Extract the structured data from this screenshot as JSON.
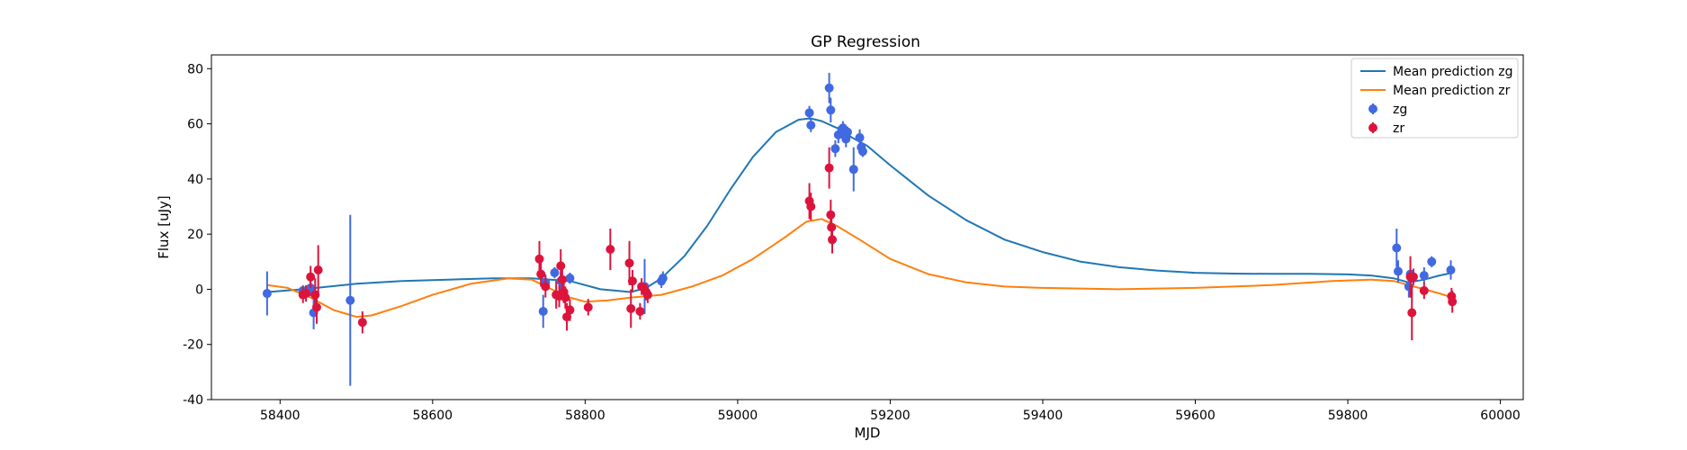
{
  "chart_data": {
    "type": "scatter",
    "title": "GP Regression",
    "xlabel": "MJD",
    "ylabel": "Flux [uJy]",
    "xlim": [
      58310,
      60030
    ],
    "ylim": [
      -40,
      85
    ],
    "xticks": [
      58400,
      58600,
      58800,
      59000,
      59200,
      59400,
      59600,
      59800,
      60000
    ],
    "yticks": [
      -40,
      -20,
      0,
      20,
      40,
      60,
      80
    ],
    "grid": false,
    "legend_position": "top-right",
    "lines": [
      {
        "name": "Mean prediction zg",
        "color": "#1f77b4",
        "x": [
          58383,
          58430,
          58500,
          58560,
          58620,
          58680,
          58730,
          58780,
          58820,
          58860,
          58880,
          58900,
          58930,
          58960,
          58990,
          59020,
          59050,
          59080,
          59095,
          59110,
          59130,
          59150,
          59170,
          59200,
          59250,
          59300,
          59350,
          59400,
          59450,
          59500,
          59550,
          59600,
          59650,
          59700,
          59750,
          59800,
          59830,
          59860,
          59880,
          59900,
          59920,
          59937
        ],
        "y": [
          -1,
          0,
          2,
          3,
          3.5,
          4,
          4,
          3,
          0,
          -1,
          0.5,
          4,
          12,
          23,
          36,
          48,
          57,
          61.5,
          62,
          61,
          58.5,
          55,
          52,
          45,
          34,
          25,
          18,
          13.5,
          10,
          8,
          6.8,
          6,
          5.7,
          5.6,
          5.6,
          5.4,
          5,
          4,
          2.5,
          3.5,
          5,
          6
        ]
      },
      {
        "name": "Mean prediction zr",
        "color": "#ff7f0e",
        "x": [
          58383,
          58410,
          58440,
          58470,
          58500,
          58520,
          58560,
          58600,
          58650,
          58700,
          58730,
          58760,
          58780,
          58800,
          58830,
          58860,
          58880,
          58900,
          58940,
          58980,
          59020,
          59060,
          59090,
          59110,
          59130,
          59160,
          59200,
          59250,
          59300,
          59350,
          59400,
          59500,
          59600,
          59700,
          59780,
          59830,
          59860,
          59880,
          59900,
          59920,
          59937
        ],
        "y": [
          1.5,
          0.5,
          -3,
          -7.5,
          -10,
          -9.5,
          -6,
          -2,
          2,
          4,
          3.5,
          -0.5,
          -3,
          -4.5,
          -4,
          -3,
          -2.5,
          -2,
          1,
          5,
          11,
          18.5,
          24.5,
          25.5,
          23,
          18,
          11,
          5.5,
          2.5,
          1,
          0.5,
          0,
          0.5,
          1.5,
          3,
          3.5,
          3,
          1.5,
          0,
          -1.5,
          -3
        ]
      }
    ],
    "series": [
      {
        "name": "zg",
        "color": "#4169e1",
        "points": [
          {
            "x": 58383,
            "y": -1.5,
            "err": 8
          },
          {
            "x": 58430,
            "y": -0.5,
            "err": 2
          },
          {
            "x": 58440,
            "y": 0.5,
            "err": 3
          },
          {
            "x": 58444,
            "y": -8.5,
            "err": 6
          },
          {
            "x": 58492,
            "y": -4,
            "err": 31
          },
          {
            "x": 58745,
            "y": -8,
            "err": 6
          },
          {
            "x": 58748,
            "y": 2.5,
            "err": 3
          },
          {
            "x": 58760,
            "y": 6,
            "err": 2
          },
          {
            "x": 58768,
            "y": 3,
            "err": 3
          },
          {
            "x": 58780,
            "y": 4,
            "err": 2
          },
          {
            "x": 58878,
            "y": 1,
            "err": 10
          },
          {
            "x": 58900,
            "y": 3,
            "err": 2.5
          },
          {
            "x": 58902,
            "y": 4,
            "err": 2.5
          },
          {
            "x": 59094,
            "y": 64,
            "err": 2.5
          },
          {
            "x": 59096,
            "y": 59.5,
            "err": 2.5
          },
          {
            "x": 59120,
            "y": 73,
            "err": 5.5
          },
          {
            "x": 59122,
            "y": 65,
            "err": 4.5
          },
          {
            "x": 59128,
            "y": 51,
            "err": 3
          },
          {
            "x": 59132,
            "y": 56,
            "err": 3
          },
          {
            "x": 59138,
            "y": 58.5,
            "err": 2.5
          },
          {
            "x": 59140,
            "y": 56,
            "err": 3
          },
          {
            "x": 59142,
            "y": 54.5,
            "err": 3
          },
          {
            "x": 59144,
            "y": 57,
            "err": 2
          },
          {
            "x": 59152,
            "y": 43.5,
            "err": 8
          },
          {
            "x": 59160,
            "y": 55,
            "err": 3
          },
          {
            "x": 59162,
            "y": 51.5,
            "err": 2
          },
          {
            "x": 59164,
            "y": 50,
            "err": 2
          },
          {
            "x": 59864,
            "y": 15,
            "err": 7
          },
          {
            "x": 59866,
            "y": 6.5,
            "err": 4
          },
          {
            "x": 59880,
            "y": 1,
            "err": 4
          },
          {
            "x": 59882,
            "y": 5.5,
            "err": 2
          },
          {
            "x": 59900,
            "y": 5,
            "err": 3
          },
          {
            "x": 59910,
            "y": 10,
            "err": 2
          },
          {
            "x": 59935,
            "y": 7,
            "err": 3.5
          }
        ]
      },
      {
        "name": "zr",
        "color": "#dc143c",
        "points": [
          {
            "x": 58430,
            "y": -2,
            "err": 3
          },
          {
            "x": 58434,
            "y": -1.5,
            "err": 3
          },
          {
            "x": 58440,
            "y": 4.5,
            "err": 4
          },
          {
            "x": 58446,
            "y": -2,
            "err": 6
          },
          {
            "x": 58448,
            "y": -6.5,
            "err": 6
          },
          {
            "x": 58450,
            "y": 7,
            "err": 9
          },
          {
            "x": 58508,
            "y": -12,
            "err": 4
          },
          {
            "x": 58740,
            "y": 11,
            "err": 6.5
          },
          {
            "x": 58742,
            "y": 5.5,
            "err": 4.5
          },
          {
            "x": 58748,
            "y": 1,
            "err": 4
          },
          {
            "x": 58762,
            "y": -2,
            "err": 5
          },
          {
            "x": 58766,
            "y": -2.5,
            "err": 4
          },
          {
            "x": 58768,
            "y": 8.5,
            "err": 6
          },
          {
            "x": 58770,
            "y": 3.5,
            "err": 5
          },
          {
            "x": 58772,
            "y": -1,
            "err": 4
          },
          {
            "x": 58774,
            "y": -3,
            "err": 4
          },
          {
            "x": 58776,
            "y": -10,
            "err": 5
          },
          {
            "x": 58780,
            "y": -7.5,
            "err": 4
          },
          {
            "x": 58804,
            "y": -6.5,
            "err": 3
          },
          {
            "x": 58833,
            "y": 14.5,
            "err": 7.5
          },
          {
            "x": 58858,
            "y": 9.5,
            "err": 8
          },
          {
            "x": 58860,
            "y": -7,
            "err": 7
          },
          {
            "x": 58862,
            "y": 3,
            "err": 4
          },
          {
            "x": 58872,
            "y": -8,
            "err": 3
          },
          {
            "x": 58874,
            "y": 1,
            "err": 3
          },
          {
            "x": 58880,
            "y": -1,
            "err": 3
          },
          {
            "x": 58882,
            "y": -2,
            "err": 3
          },
          {
            "x": 59094,
            "y": 32,
            "err": 6.5
          },
          {
            "x": 59096,
            "y": 30,
            "err": 5
          },
          {
            "x": 59120,
            "y": 44,
            "err": 7.5
          },
          {
            "x": 59122,
            "y": 27,
            "err": 5.5
          },
          {
            "x": 59123,
            "y": 22.5,
            "err": 5.5
          },
          {
            "x": 59124,
            "y": 18,
            "err": 5
          },
          {
            "x": 59882,
            "y": 4.5,
            "err": 7.5
          },
          {
            "x": 59884,
            "y": -8.5,
            "err": 10
          },
          {
            "x": 59886,
            "y": 4.5,
            "err": 3
          },
          {
            "x": 59900,
            "y": -0.5,
            "err": 3
          },
          {
            "x": 59936,
            "y": -2.5,
            "err": 3
          },
          {
            "x": 59937,
            "y": -4.5,
            "err": 4
          }
        ]
      }
    ]
  }
}
